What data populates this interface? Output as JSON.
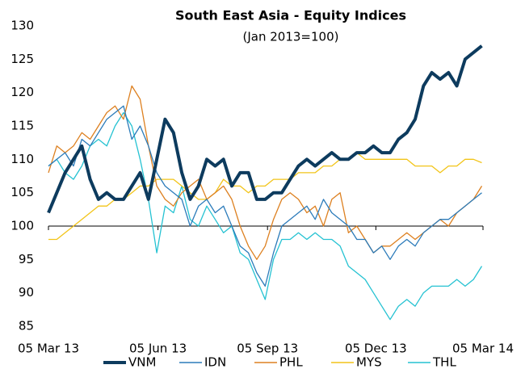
{
  "chart_data": {
    "type": "line",
    "title": "South East Asia - Equity Indices",
    "subtitle": "(Jan 2013=100)",
    "x": [
      "2013-03-05",
      "2013-03-12",
      "2013-03-19",
      "2013-03-26",
      "2013-04-02",
      "2013-04-09",
      "2013-04-16",
      "2013-04-23",
      "2013-04-30",
      "2013-05-07",
      "2013-05-14",
      "2013-05-21",
      "2013-05-28",
      "2013-06-04",
      "2013-06-11",
      "2013-06-18",
      "2013-06-25",
      "2013-07-02",
      "2013-07-09",
      "2013-07-16",
      "2013-07-23",
      "2013-07-30",
      "2013-08-06",
      "2013-08-13",
      "2013-08-20",
      "2013-08-27",
      "2013-09-03",
      "2013-09-10",
      "2013-09-17",
      "2013-09-24",
      "2013-10-01",
      "2013-10-08",
      "2013-10-15",
      "2013-10-22",
      "2013-10-29",
      "2013-11-05",
      "2013-11-12",
      "2013-11-19",
      "2013-11-26",
      "2013-12-03",
      "2013-12-10",
      "2013-12-17",
      "2013-12-24",
      "2013-12-31",
      "2014-01-07",
      "2014-01-14",
      "2014-01-21",
      "2014-01-28",
      "2014-02-04",
      "2014-02-11",
      "2014-02-18",
      "2014-02-25",
      "2014-03-04"
    ],
    "series": [
      {
        "name": "VNM",
        "color": "#0d3b5e",
        "values": [
          102,
          105,
          108,
          110,
          112,
          107,
          104,
          105,
          104,
          104,
          106,
          108,
          104,
          110,
          116,
          114,
          108,
          104,
          106,
          110,
          109,
          110,
          106,
          108,
          108,
          104,
          104,
          105,
          105,
          107,
          109,
          110,
          109,
          110,
          111,
          110,
          110,
          111,
          111,
          112,
          111,
          111,
          113,
          114,
          116,
          121,
          123,
          122,
          123,
          121,
          125,
          126,
          127
        ]
      },
      {
        "name": "IDN",
        "color": "#2b7bba",
        "values": [
          109,
          110,
          111,
          109,
          113,
          112,
          114,
          116,
          117,
          118,
          113,
          115,
          112,
          108,
          106,
          105,
          104,
          100,
          103,
          104,
          102,
          103,
          100,
          97,
          96,
          93,
          91,
          96,
          100,
          101,
          102,
          103,
          101,
          104,
          102,
          101,
          100,
          98,
          98,
          96,
          97,
          95,
          97,
          98,
          97,
          99,
          100,
          101,
          101,
          102,
          103,
          104,
          105
        ]
      },
      {
        "name": "PHL",
        "color": "#dd8020",
        "values": [
          108,
          112,
          111,
          112,
          114,
          113,
          115,
          117,
          118,
          116,
          121,
          119,
          112,
          106,
          104,
          103,
          105,
          106,
          107,
          104,
          105,
          106,
          104,
          100,
          97,
          95,
          97,
          101,
          104,
          105,
          104,
          102,
          103,
          100,
          104,
          105,
          99,
          100,
          98,
          96,
          97,
          97,
          98,
          99,
          98,
          99,
          100,
          101,
          100,
          102,
          103,
          104,
          106
        ]
      },
      {
        "name": "MYS",
        "color": "#f2c418",
        "values": [
          98,
          98,
          99,
          100,
          101,
          102,
          103,
          103,
          104,
          104,
          105,
          106,
          106,
          107,
          107,
          107,
          106,
          105,
          104,
          104,
          105,
          107,
          106,
          106,
          105,
          106,
          106,
          107,
          107,
          107,
          108,
          108,
          108,
          109,
          109,
          110,
          110,
          111,
          110,
          110,
          110,
          110,
          110,
          110,
          109,
          109,
          109,
          108,
          109,
          109,
          110,
          110,
          109.5
        ]
      },
      {
        "name": "THL",
        "color": "#25c2d2",
        "values": [
          109,
          110,
          108,
          107,
          109,
          112,
          113,
          112,
          115,
          117,
          115,
          110,
          104,
          96,
          103,
          102,
          106,
          101,
          100,
          103,
          101,
          99,
          100,
          96,
          95,
          92,
          89,
          95,
          98,
          98,
          99,
          98,
          99,
          98,
          98,
          97,
          94,
          93,
          92,
          90,
          88,
          86,
          88,
          89,
          88,
          90,
          91,
          91,
          91,
          92,
          91,
          92,
          94
        ]
      }
    ],
    "xlim": [
      "2013-03-05",
      "2014-03-05"
    ],
    "xticks": [
      {
        "value": "2013-03-05",
        "label": "05 Mar 13"
      },
      {
        "value": "2013-06-05",
        "label": "05 Jun 13"
      },
      {
        "value": "2013-09-05",
        "label": "05 Sep 13"
      },
      {
        "value": "2013-12-05",
        "label": "05 Dec 13"
      },
      {
        "value": "2014-03-05",
        "label": "05 Mar 14"
      }
    ],
    "ylim": [
      85,
      130
    ],
    "yticks": [
      85,
      90,
      95,
      100,
      105,
      110,
      115,
      120,
      125,
      130
    ],
    "baseline": 100,
    "grid": false,
    "legend": "bottom"
  }
}
